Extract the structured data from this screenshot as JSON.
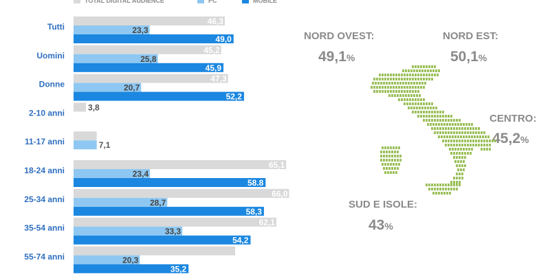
{
  "legend": [
    {
      "label": "TOTAL DIGITAL AUDIENCE",
      "color": "#d9d9d9"
    },
    {
      "label": "PC",
      "color": "#8ec8f2"
    },
    {
      "label": "MOBILE",
      "color": "#1b87e0"
    }
  ],
  "chart_data": {
    "type": "bar",
    "orientation": "horizontal",
    "categories": [
      "Tutti",
      "Uomini",
      "Donne",
      "2-10 anni",
      "11-17 anni",
      "18-24 anni",
      "25-34 anni",
      "35-54 anni",
      "55-74 anni"
    ],
    "series": [
      {
        "name": "TOTAL DIGITAL AUDIENCE",
        "color": "#d9d9d9",
        "values": [
          46.3,
          45.2,
          47.3,
          3.8,
          7.1,
          65.1,
          66.0,
          62.1,
          49.5
        ],
        "labels": [
          "46,3",
          "45,2",
          "47,3",
          "3,8",
          "",
          "65,1",
          "66,0",
          "62,1",
          ""
        ]
      },
      {
        "name": "PC",
        "color": "#8ec8f2",
        "values": [
          23.3,
          25.8,
          20.7,
          null,
          7.1,
          23.4,
          28.7,
          33.3,
          20.3
        ],
        "labels": [
          "23,3",
          "25,8",
          "20,7",
          "",
          "7,1",
          "23,4",
          "28,7",
          "33,3",
          "20,3"
        ]
      },
      {
        "name": "MOBILE",
        "color": "#1b87e0",
        "values": [
          49.0,
          45.9,
          52.2,
          null,
          null,
          58.8,
          58.3,
          54.2,
          35.2
        ],
        "labels": [
          "49,0",
          "45,9",
          "52,2",
          "",
          "",
          "58.8",
          "58,3",
          "54,2",
          "35,2"
        ]
      }
    ],
    "xlim": [
      0,
      66
    ],
    "grid": false,
    "legend_position": "top"
  },
  "regions": [
    {
      "name": "NORD OVEST:",
      "value": "49,1",
      "unit": "%"
    },
    {
      "name": "NORD EST:",
      "value": "50,1",
      "unit": "%"
    },
    {
      "name": "CENTRO:",
      "value": "45,2",
      "unit": "%"
    },
    {
      "name": "SUD E ISOLE:",
      "value": "43",
      "unit": "%"
    }
  ],
  "map_color": "#9bbf5a"
}
